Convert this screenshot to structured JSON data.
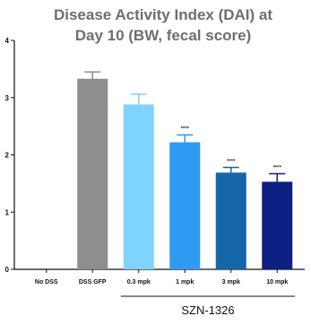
{
  "chart_data": {
    "type": "bar",
    "title_lines": [
      "Disease Activity Index (DAI) at",
      "Day 10 (BW, fecal score)"
    ],
    "categories": [
      "No DSS",
      "DSS GFP",
      "0.3 mpk",
      "1 mpk",
      "3 mpk",
      "10 mpk"
    ],
    "values": [
      0,
      3.33,
      2.88,
      2.22,
      1.69,
      1.53
    ],
    "errors": [
      0,
      0.12,
      0.18,
      0.13,
      0.09,
      0.14
    ],
    "colors": [
      "#ffffff",
      "#8e8e8e",
      "#7fd3ff",
      "#2f9af2",
      "#1466a8",
      "#0d1f83"
    ],
    "significance": [
      "",
      "",
      "",
      "****",
      "****",
      "****"
    ],
    "yticks": [
      "0",
      "1",
      "2",
      "3",
      "4"
    ],
    "ylim": [
      0,
      4
    ],
    "group": {
      "label": "SZN-1326",
      "from": 2,
      "to": 5
    }
  }
}
